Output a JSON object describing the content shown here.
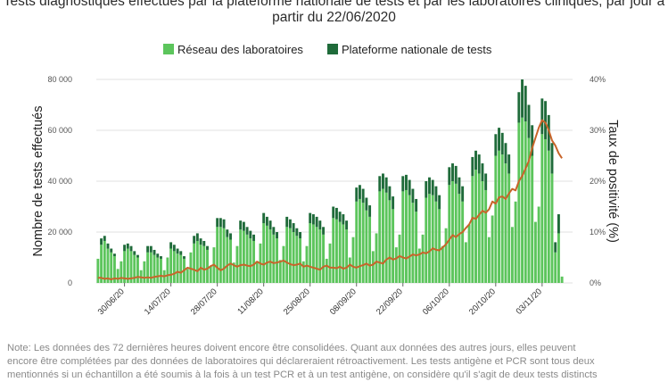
{
  "title_lines": [
    "Tests diagnostiques effectués par la plateforme nationale de tests et par les laboratoires cliniques, par jour à",
    "partir du 22/06/2020"
  ],
  "note_lines": [
    "Note: Les données des 72 dernières heures doivent encore être consolidées. Quant aux données des autres jours, elles peuvent",
    "encore être complétées par des données de laboratoires qui déclareraient rétroactivement. Les tests antigène et PCR sont tous deux",
    "mentionnés si un échantillon a été soumis à la fois à un test PCR et à un test antigène, on considère qu'il s'agit de deux tests distincts"
  ],
  "colors": {
    "laboratoires": "#5cc55c",
    "plateforme": "#1f6b3a",
    "positivite": "#c8642a",
    "grid": "#e2e2e2"
  },
  "chart_data": {
    "type": "bar",
    "stacked": true,
    "title": "Tests diagnostiques effectués par la plateforme nationale de tests et par les laboratoires cliniques, par jour à partir du 22/06/2020",
    "xlabel": "",
    "ylabel": "Nombre de tests effectués",
    "y2label": "Taux de positivité (%)",
    "ylim": [
      0,
      80000
    ],
    "y2lim": [
      0,
      40
    ],
    "yticks": [
      "0",
      "20 000",
      "40 000",
      "60 000",
      "80 000"
    ],
    "y2ticks": [
      "0%",
      "10%",
      "20%",
      "30%",
      "40%"
    ],
    "x_tick_labels": [
      "30/06/20",
      "14/07/20",
      "28/07/20",
      "11/08/20",
      "25/08/20",
      "08/09/20",
      "22/09/20",
      "06/10/20",
      "20/10/20",
      "03/11/20"
    ],
    "x_tick_index": [
      8,
      22,
      36,
      50,
      64,
      78,
      92,
      106,
      120,
      134
    ],
    "legend": {
      "position": "top",
      "labels": [
        "Réseau des laboratoires",
        "Plateforme nationale de tests"
      ]
    },
    "grid": true,
    "start_date": "22/06/2020",
    "series": [
      {
        "name": "Réseau des laboratoires",
        "values": [
          9500,
          15000,
          16500,
          13500,
          12000,
          10500,
          5500,
          8500,
          12500,
          13500,
          12500,
          11000,
          10000,
          5000,
          8500,
          12000,
          12000,
          11000,
          10000,
          9500,
          5000,
          10000,
          13500,
          12500,
          11500,
          11000,
          9500,
          5500,
          12000,
          15500,
          16500,
          15000,
          14500,
          13000,
          6500,
          14000,
          22000,
          22000,
          21500,
          18000,
          17000,
          8000,
          14500,
          21000,
          20500,
          19000,
          17500,
          16500,
          8500,
          15500,
          23500,
          22500,
          21000,
          19000,
          17500,
          9000,
          14500,
          22000,
          21500,
          20000,
          18500,
          17500,
          8500,
          14500,
          23500,
          23000,
          22000,
          21000,
          19000,
          9500,
          15500,
          25500,
          25000,
          24000,
          23000,
          21000,
          10000,
          18000,
          32000,
          33000,
          31500,
          28500,
          26000,
          12500,
          19500,
          36000,
          37000,
          35500,
          32500,
          29000,
          14000,
          19000,
          36000,
          36500,
          34500,
          31500,
          28000,
          13500,
          19000,
          33500,
          35000,
          34500,
          32000,
          29000,
          14500,
          21500,
          38500,
          40000,
          39000,
          35000,
          32000,
          16000,
          23000,
          42000,
          44500,
          43000,
          40000,
          36500,
          18000,
          26500,
          50000,
          52000,
          50500,
          47000,
          43000,
          22000,
          32000,
          63000,
          65000,
          63500,
          57000,
          50000,
          24000,
          30000,
          58500,
          56500,
          52000,
          43000,
          12000,
          19500,
          2500
        ],
        "color": "#5cc55c"
      },
      {
        "name": "Plateforme nationale de tests",
        "values": [
          0,
          2500,
          2000,
          2000,
          1500,
          1000,
          0,
          0,
          2500,
          2000,
          2000,
          1500,
          1000,
          0,
          0,
          2500,
          2500,
          2000,
          1500,
          1000,
          0,
          0,
          2500,
          2500,
          2000,
          1500,
          1000,
          0,
          0,
          3000,
          3000,
          2500,
          2000,
          1500,
          0,
          0,
          3500,
          3500,
          3500,
          3000,
          2500,
          0,
          0,
          3500,
          3500,
          3000,
          3000,
          2500,
          0,
          0,
          4000,
          3500,
          3500,
          3000,
          2500,
          0,
          0,
          4000,
          3500,
          3500,
          3000,
          2500,
          0,
          0,
          4000,
          4000,
          4000,
          3500,
          3000,
          0,
          0,
          4500,
          4500,
          4000,
          4000,
          3500,
          0,
          0,
          5500,
          5500,
          5500,
          5000,
          4500,
          0,
          0,
          6000,
          6000,
          6000,
          5500,
          5000,
          0,
          0,
          6000,
          6000,
          6000,
          5500,
          5000,
          0,
          0,
          6500,
          6500,
          6000,
          6000,
          5500,
          0,
          0,
          7000,
          7000,
          7000,
          6500,
          6000,
          0,
          0,
          7500,
          7500,
          7500,
          7000,
          6500,
          0,
          0,
          8500,
          9000,
          8500,
          8000,
          7500,
          0,
          0,
          12000,
          15000,
          14000,
          13000,
          12000,
          0,
          0,
          14000,
          15000,
          14000,
          12000,
          4000,
          7500,
          0
        ],
        "color": "#1f6b3a"
      },
      {
        "name": "Taux de positivité",
        "axis": "y2",
        "values": [
          1,
          1,
          0.8,
          0.9,
          0.7,
          0.9,
          0.8,
          1.0,
          0.9,
          0.8,
          0.9,
          1.0,
          1.2,
          1.1,
          1.0,
          1.1,
          1.0,
          1.2,
          1.3,
          1.4,
          1.3,
          1.5,
          1.6,
          1.8,
          2.2,
          2.0,
          2.5,
          3.0,
          2.8,
          2.6,
          2.3,
          3.0,
          2.6,
          2.8,
          3.3,
          3.6,
          3.0,
          2.5,
          2.8,
          3.4,
          3.8,
          3.5,
          3.2,
          3.5,
          3.6,
          3.4,
          3.3,
          3.6,
          4.2,
          3.8,
          3.6,
          4.0,
          4.2,
          3.9,
          4.0,
          4.2,
          4.4,
          4.0,
          3.7,
          3.5,
          3.6,
          3.8,
          3.2,
          3.4,
          3.2,
          3.0,
          2.8,
          2.6,
          3.2,
          3.4,
          3.0,
          3.0,
          2.9,
          3.2,
          2.8,
          3.0,
          3.6,
          3.2,
          3.0,
          3.3,
          3.5,
          3.8,
          3.4,
          3.6,
          4.2,
          4.0,
          3.8,
          4.6,
          5.0,
          4.6,
          4.8,
          5.3,
          5.0,
          4.8,
          5.2,
          5.6,
          5.4,
          5.6,
          6.0,
          5.8,
          6.2,
          6.8,
          6.5,
          6.4,
          7.0,
          7.6,
          8.5,
          9.4,
          9.0,
          9.6,
          10.0,
          10.8,
          11.5,
          12.8,
          12.6,
          13.4,
          14.2,
          13.8,
          14.5,
          16.0,
          15.6,
          16.8,
          17.0,
          16.5,
          17.6,
          18.5,
          18.2,
          20.0,
          21.0,
          22.5,
          24.0,
          26.5,
          28.5,
          30.5,
          32.0,
          31.5,
          30.0,
          28.0,
          27.0,
          25.5,
          24.5
        ],
        "color": "#c8642a"
      }
    ]
  }
}
